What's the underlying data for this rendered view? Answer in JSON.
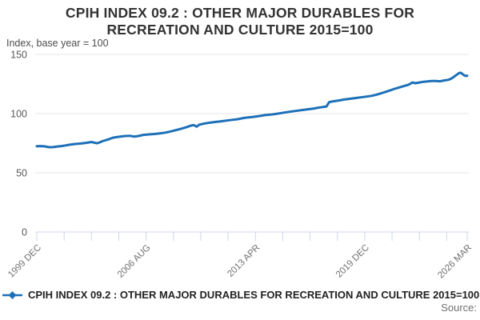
{
  "header": {
    "title_lines": [
      "CPIH INDEX 09.2 : OTHER MAJOR DURABLES FOR",
      "RECREATION AND CULTURE 2015=100"
    ],
    "subtitle": "Index, base year = 100"
  },
  "legend": {
    "label": "CPIH INDEX 09.2 : OTHER MAJOR DURABLES FOR RECREATION AND CULTURE 2015=100"
  },
  "footer": {
    "source_label": "Source:"
  },
  "colors": {
    "series": "#1d70b8",
    "grid": "#e6e6e6",
    "axis_line": "#ccd6eb",
    "tick": "#ccd6eb",
    "axis_text": "#707070",
    "y_axis_text": "#595959"
  },
  "chart_data": {
    "type": "line",
    "title": "CPIH INDEX 09.2 : OTHER MAJOR DURABLES FOR RECREATION AND CULTURE 2015=100",
    "ylabel": "Index, base year = 100",
    "xlabel": "",
    "ylim": [
      0,
      150
    ],
    "grid": true,
    "legend_position": "bottom-left",
    "y_ticks": [
      {
        "value": 0,
        "label": "0"
      },
      {
        "value": 50,
        "label": "50"
      },
      {
        "value": 100,
        "label": "100"
      },
      {
        "value": 150,
        "label": "150"
      }
    ],
    "x_total_months": 315,
    "x_minor_tick_months": [
      0,
      20,
      40,
      60,
      80,
      100,
      120,
      140,
      160,
      180,
      200,
      220,
      240,
      260,
      280,
      300,
      315
    ],
    "x_major_ticks": [
      {
        "month": 0,
        "label": "1999 DEC"
      },
      {
        "month": 80,
        "label": "2006 AUG"
      },
      {
        "month": 160,
        "label": "2013 APR"
      },
      {
        "month": 240,
        "label": "2019 DEC"
      },
      {
        "month": 315,
        "label": "2026 MAR"
      }
    ],
    "series": [
      {
        "name": "CPIH INDEX 09.2 : OTHER MAJOR DURABLES FOR RECREATION AND CULTURE 2015=100",
        "color": "#1d70b8",
        "points": [
          [
            0,
            72.4
          ],
          [
            3,
            72.6
          ],
          [
            6,
            72.3
          ],
          [
            9,
            71.6
          ],
          [
            12,
            71.7
          ],
          [
            15,
            72.2
          ],
          [
            18,
            72.6
          ],
          [
            21,
            73.1
          ],
          [
            24,
            73.7
          ],
          [
            28,
            74.3
          ],
          [
            32,
            74.7
          ],
          [
            36,
            75.3
          ],
          [
            40,
            76.0
          ],
          [
            44,
            74.9
          ],
          [
            46,
            75.7
          ],
          [
            48,
            76.7
          ],
          [
            52,
            78.1
          ],
          [
            56,
            79.7
          ],
          [
            60,
            80.4
          ],
          [
            64,
            81.0
          ],
          [
            68,
            81.3
          ],
          [
            71,
            80.6
          ],
          [
            74,
            81.0
          ],
          [
            78,
            82.0
          ],
          [
            82,
            82.4
          ],
          [
            86,
            82.8
          ],
          [
            90,
            83.3
          ],
          [
            94,
            83.9
          ],
          [
            98,
            84.9
          ],
          [
            102,
            86.1
          ],
          [
            106,
            87.3
          ],
          [
            110,
            88.7
          ],
          [
            113,
            89.9
          ],
          [
            115,
            90.3
          ],
          [
            117,
            89.0
          ],
          [
            119,
            90.7
          ],
          [
            123,
            91.7
          ],
          [
            127,
            92.4
          ],
          [
            131,
            93.0
          ],
          [
            135,
            93.5
          ],
          [
            139,
            94.1
          ],
          [
            143,
            94.7
          ],
          [
            147,
            95.3
          ],
          [
            151,
            96.2
          ],
          [
            155,
            96.8
          ],
          [
            159,
            97.3
          ],
          [
            163,
            98.0
          ],
          [
            167,
            98.7
          ],
          [
            171,
            99.1
          ],
          [
            175,
            99.7
          ],
          [
            179,
            100.5
          ],
          [
            183,
            101.2
          ],
          [
            187,
            101.9
          ],
          [
            191,
            102.5
          ],
          [
            195,
            103.1
          ],
          [
            199,
            103.7
          ],
          [
            203,
            104.3
          ],
          [
            207,
            105.2
          ],
          [
            210,
            105.7
          ],
          [
            212,
            106.0
          ],
          [
            214,
            109.7
          ],
          [
            217,
            110.4
          ],
          [
            221,
            111.1
          ],
          [
            225,
            111.9
          ],
          [
            229,
            112.5
          ],
          [
            233,
            113.1
          ],
          [
            237,
            113.7
          ],
          [
            241,
            114.3
          ],
          [
            245,
            115.0
          ],
          [
            249,
            116.1
          ],
          [
            253,
            117.5
          ],
          [
            257,
            119.0
          ],
          [
            261,
            120.6
          ],
          [
            265,
            122.0
          ],
          [
            269,
            123.4
          ],
          [
            272,
            124.4
          ],
          [
            275,
            126.3
          ],
          [
            277,
            125.7
          ],
          [
            280,
            126.3
          ],
          [
            283,
            126.9
          ],
          [
            286,
            127.2
          ],
          [
            289,
            127.6
          ],
          [
            292,
            127.5
          ],
          [
            295,
            127.3
          ],
          [
            298,
            128.0
          ],
          [
            301,
            128.5
          ],
          [
            303,
            129.3
          ],
          [
            305,
            130.8
          ],
          [
            307,
            132.6
          ],
          [
            309,
            134.2
          ],
          [
            310,
            134.5
          ],
          [
            311,
            134.0
          ],
          [
            312,
            133.0
          ],
          [
            313,
            132.2
          ],
          [
            314,
            131.8
          ],
          [
            315,
            132.0
          ]
        ]
      }
    ]
  }
}
